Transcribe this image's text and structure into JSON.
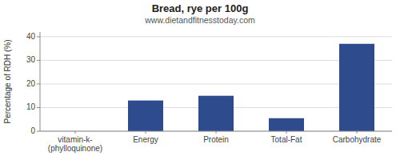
{
  "chart_data": {
    "type": "bar",
    "title": "Bread, rye per 100g",
    "subtitle": "www.dietandfitnesstoday.com",
    "categories": [
      "vitamin-k-(phylloquinone)",
      "Energy",
      "Protein",
      "Total-Fat",
      "Carbohydrate"
    ],
    "values": [
      0,
      13,
      15,
      5.5,
      37
    ],
    "color": "#2e4b8e",
    "ylabel": "Percentage of RDH (%)",
    "ylim": [
      0,
      42
    ],
    "yticks": [
      0,
      10,
      20,
      30,
      40
    ],
    "grid": true
  }
}
